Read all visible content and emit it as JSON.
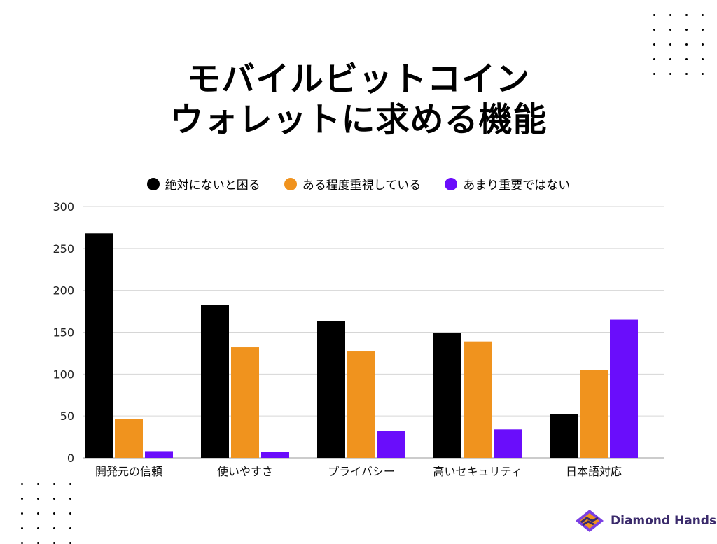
{
  "title_lines": [
    "モバイルビットコイン",
    "ウォレットに求める機能"
  ],
  "brand": {
    "name": "Diamond Hands"
  },
  "chart_data": {
    "type": "bar",
    "categories": [
      "開発元の信頼",
      "使いやすさ",
      "プライバシー",
      "高いセキュリティ",
      "日本語対応"
    ],
    "series": [
      {
        "name": "絶対にないと困る",
        "color": "#000000",
        "values": [
          268,
          183,
          163,
          149,
          52
        ]
      },
      {
        "name": "ある程度重視している",
        "color": "#f0931e",
        "values": [
          46,
          132,
          127,
          139,
          105
        ]
      },
      {
        "name": "あまり重要ではない",
        "color": "#6a0dfb",
        "values": [
          8,
          7,
          32,
          34,
          165
        ]
      }
    ],
    "ylim": [
      0,
      300
    ],
    "yticks": [
      0,
      50,
      100,
      150,
      200,
      250,
      300
    ],
    "grid": true,
    "legend_position": "top-center"
  }
}
